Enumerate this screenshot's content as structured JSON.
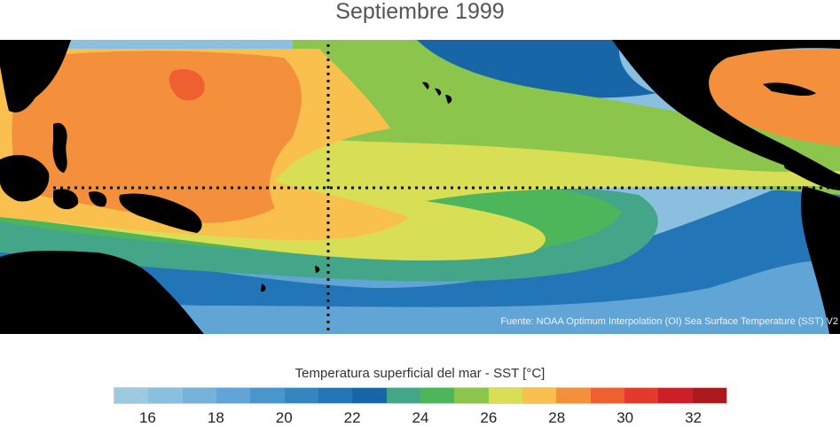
{
  "title": "Septiembre 1999",
  "map": {
    "source_note": "Fuente: NOAA Optimum Interpolation (OI) Sea Surface Temperature (SST) V2",
    "land_color": "#000000",
    "grid_lines": "dotted: equator and 180° meridian"
  },
  "colorbar": {
    "title": "Temperatura superficial del mar - SST  [°C]",
    "range": [
      15,
      33
    ],
    "colors": [
      "#9ecae1",
      "#8bbfdf",
      "#76b3db",
      "#60a5d5",
      "#4a95cc",
      "#3585c1",
      "#2275b6",
      "#1666a8",
      "#44a689",
      "#4db55a",
      "#8cc54c",
      "#d9df55",
      "#f9c04e",
      "#f4903c",
      "#ee6030",
      "#e33a2b",
      "#cc1f27",
      "#aa1a1e"
    ],
    "tick_labels": [
      "16",
      "18",
      "20",
      "22",
      "24",
      "26",
      "28",
      "30",
      "32"
    ]
  }
}
